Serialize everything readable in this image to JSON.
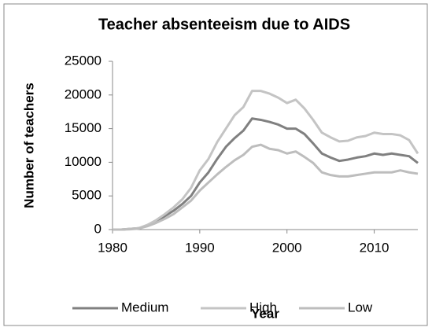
{
  "chart_data": {
    "type": "line",
    "title": "Teacher absenteeism due to AIDS",
    "x_label": "Year",
    "y_label": "Number of teachers",
    "x": [
      1980,
      1981,
      1982,
      1983,
      1984,
      1985,
      1986,
      1987,
      1988,
      1989,
      1990,
      1991,
      1992,
      1993,
      1994,
      1995,
      1996,
      1997,
      1998,
      1999,
      2000,
      2001,
      2002,
      2003,
      2004,
      2005,
      2006,
      2007,
      2008,
      2009,
      2010,
      2011,
      2012,
      2013,
      2014,
      2015
    ],
    "series": [
      {
        "name": "Medium",
        "color": "#808080",
        "values": [
          0,
          0,
          100,
          200,
          600,
          1200,
          2000,
          2800,
          3800,
          5000,
          7000,
          8500,
          10500,
          12300,
          13600,
          14700,
          16500,
          16300,
          16000,
          15600,
          15000,
          15000,
          14200,
          12800,
          11300,
          10700,
          10200,
          10400,
          10700,
          10900,
          11300,
          11100,
          11300,
          11100,
          10900,
          9900
        ]
      },
      {
        "name": "High",
        "color": "#c4c4c4",
        "values": [
          0,
          0,
          100,
          200,
          700,
          1400,
          2300,
          3300,
          4500,
          6200,
          8800,
          10500,
          13000,
          15000,
          17000,
          18200,
          20600,
          20600,
          20200,
          19600,
          18800,
          19300,
          18000,
          16300,
          14400,
          13700,
          13100,
          13200,
          13700,
          13900,
          14400,
          14200,
          14200,
          14000,
          13300,
          11300
        ]
      },
      {
        "name": "Low",
        "color": "#bdbdbd",
        "values": [
          0,
          0,
          50,
          150,
          500,
          1000,
          1600,
          2300,
          3300,
          4300,
          5800,
          7000,
          8200,
          9300,
          10300,
          11100,
          12300,
          12600,
          12000,
          11800,
          11300,
          11600,
          10800,
          9900,
          8500,
          8100,
          7900,
          7900,
          8100,
          8300,
          8500,
          8500,
          8500,
          8800,
          8500,
          8300
        ]
      }
    ],
    "xlim": [
      1980,
      2015
    ],
    "xticks": [
      1980,
      1990,
      2000,
      2010
    ],
    "ylim": [
      0,
      25000
    ],
    "yticks": [
      0,
      5000,
      10000,
      15000,
      20000,
      25000
    ],
    "grid": false
  }
}
